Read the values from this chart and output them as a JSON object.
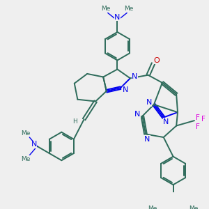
{
  "background_color": "#efefef",
  "bond_color": "#2d6b5a",
  "nitrogen_color": "#0000ee",
  "oxygen_color": "#cc0000",
  "fluorine_color": "#dd00dd",
  "lw": 1.4,
  "figsize": [
    3.0,
    3.0
  ],
  "dpi": 100,
  "xlim": [
    0,
    300
  ],
  "ylim": [
    0,
    300
  ]
}
